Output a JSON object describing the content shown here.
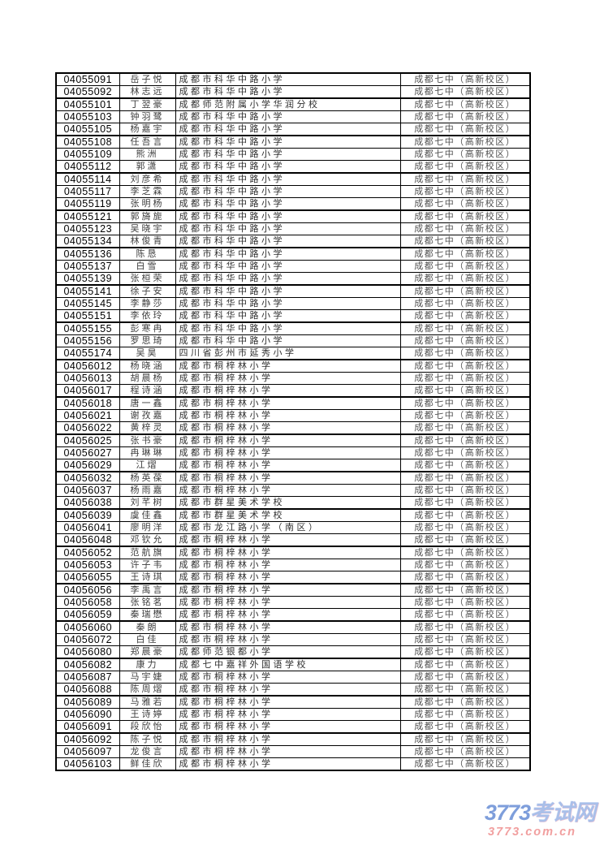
{
  "admission_table": {
    "admitted_to": "成都七中（高新校区）",
    "rows": [
      {
        "id": "04055091",
        "name": "岳子悦",
        "school": "成都市科华中路小学"
      },
      {
        "id": "04055092",
        "name": "林志远",
        "school": "成都市科华中路小学"
      },
      {
        "id": "04055101",
        "name": "丁翌豪",
        "school": "成都师范附属小学华润分校"
      },
      {
        "id": "04055103",
        "name": "钟羽鹭",
        "school": "成都市科华中路小学"
      },
      {
        "id": "04055105",
        "name": "杨嘉宇",
        "school": "成都市科华中路小学"
      },
      {
        "id": "04055108",
        "name": "任吾言",
        "school": "成都市科华中路小学"
      },
      {
        "id": "04055109",
        "name": "熊洲",
        "school": "成都市科华中路小学"
      },
      {
        "id": "04055112",
        "name": "郭潇",
        "school": "成都市科华中路小学"
      },
      {
        "id": "04055114",
        "name": "刘彦希",
        "school": "成都市科华中路小学"
      },
      {
        "id": "04055117",
        "name": "李芝霖",
        "school": "成都市科华中路小学"
      },
      {
        "id": "04055119",
        "name": "张明杨",
        "school": "成都市科华中路小学"
      },
      {
        "id": "04055121",
        "name": "郭旖旎",
        "school": "成都市科华中路小学"
      },
      {
        "id": "04055123",
        "name": "吴晓宇",
        "school": "成都市科华中路小学"
      },
      {
        "id": "04055134",
        "name": "林俊青",
        "school": "成都市科华中路小学"
      },
      {
        "id": "04055136",
        "name": "陈恳",
        "school": "成都市科华中路小学"
      },
      {
        "id": "04055137",
        "name": "白雪",
        "school": "成都市科华中路小学"
      },
      {
        "id": "04055139",
        "name": "张桓荣",
        "school": "成都市科华中路小学"
      },
      {
        "id": "04055141",
        "name": "徐子安",
        "school": "成都市科华中路小学"
      },
      {
        "id": "04055145",
        "name": "李静莎",
        "school": "成都市科华中路小学"
      },
      {
        "id": "04055151",
        "name": "李依玲",
        "school": "成都市科华中路小学"
      },
      {
        "id": "04055155",
        "name": "彭寒冉",
        "school": "成都市科华中路小学"
      },
      {
        "id": "04055156",
        "name": "罗思琦",
        "school": "成都市科华中路小学"
      },
      {
        "id": "04055174",
        "name": "吴昊",
        "school": "四川省彭州市延秀小学"
      },
      {
        "id": "04056012",
        "name": "杨晓涵",
        "school": "成都市桐梓林小学"
      },
      {
        "id": "04056013",
        "name": "胡晨杨",
        "school": "成都市桐梓林小学"
      },
      {
        "id": "04056017",
        "name": "程诗涵",
        "school": "成都市桐梓林小学"
      },
      {
        "id": "04056018",
        "name": "唐一鑫",
        "school": "成都市桐梓林小学"
      },
      {
        "id": "04056021",
        "name": "谢孜嘉",
        "school": "成都市桐梓林小学"
      },
      {
        "id": "04056022",
        "name": "黄梓灵",
        "school": "成都市桐梓林小学"
      },
      {
        "id": "04056025",
        "name": "张书豪",
        "school": "成都市桐梓林小学"
      },
      {
        "id": "04056027",
        "name": "冉琳琳",
        "school": "成都市桐梓林小学"
      },
      {
        "id": "04056029",
        "name": "江熠",
        "school": "成都市桐梓林小学"
      },
      {
        "id": "04056032",
        "name": "杨英葆",
        "school": "成都市桐梓林小学"
      },
      {
        "id": "04056037",
        "name": "杨雨嘉",
        "school": "成都市桐梓林小学"
      },
      {
        "id": "04056038",
        "name": "刘芊树",
        "school": "成都市群星美术学校"
      },
      {
        "id": "04056039",
        "name": "虞佳鑫",
        "school": "成都市群星美术学校"
      },
      {
        "id": "04056041",
        "name": "廖明洋",
        "school": "成都市龙江路小学（南区）"
      },
      {
        "id": "04056048",
        "name": "邓钦允",
        "school": "成都市桐梓林小学"
      },
      {
        "id": "04056052",
        "name": "范航旗",
        "school": "成都市桐梓林小学"
      },
      {
        "id": "04056053",
        "name": "许子韦",
        "school": "成都市桐梓林小学"
      },
      {
        "id": "04056055",
        "name": "王诗琪",
        "school": "成都市桐梓林小学"
      },
      {
        "id": "04056056",
        "name": "李禹言",
        "school": "成都市桐梓林小学"
      },
      {
        "id": "04056058",
        "name": "张铭茗",
        "school": "成都市桐梓林小学"
      },
      {
        "id": "04056059",
        "name": "秦瑞懋",
        "school": "成都市桐梓林小学"
      },
      {
        "id": "04056060",
        "name": "秦朗",
        "school": "成都市桐梓林小学"
      },
      {
        "id": "04056072",
        "name": "白佳",
        "school": "成都市桐梓林小学"
      },
      {
        "id": "04056080",
        "name": "郑晨豪",
        "school": "成都师范银都小学"
      },
      {
        "id": "04056082",
        "name": "康力",
        "school": "成都七中嘉祥外国语学校"
      },
      {
        "id": "04056087",
        "name": "马宇婕",
        "school": "成都市桐梓林小学"
      },
      {
        "id": "04056088",
        "name": "陈周熠",
        "school": "成都市桐梓林小学"
      },
      {
        "id": "04056089",
        "name": "马雅若",
        "school": "成都市桐梓林小学"
      },
      {
        "id": "04056090",
        "name": "王诗婷",
        "school": "成都市桐梓林小学"
      },
      {
        "id": "04056091",
        "name": "段欣怡",
        "school": "成都市桐梓林小学"
      },
      {
        "id": "04056092",
        "name": "陈子悦",
        "school": "成都市桐梓林小学"
      },
      {
        "id": "04056097",
        "name": "龙俊言",
        "school": "成都市桐梓林小学"
      },
      {
        "id": "04056103",
        "name": "鲜佳欣",
        "school": "成都市桐梓林小学"
      }
    ]
  },
  "footer_logo": {
    "brand_number": "3773",
    "brand_suffix": "考试网",
    "domain": "3773.com.cn",
    "brand_number_color": "#7e9edb",
    "brand_suffix_color": "#a9bfe9",
    "domain_color": "#f19f9f"
  }
}
